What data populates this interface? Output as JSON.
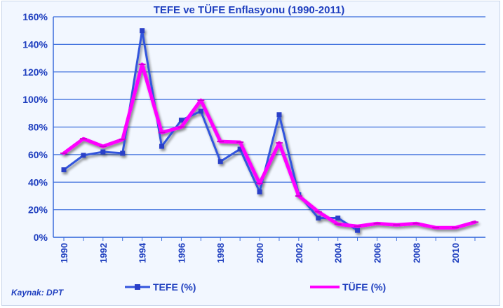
{
  "chart_data": {
    "type": "line",
    "title": "TEFE ve TÜFE Enflasyonu (1990-2011)",
    "source": "Kaynak: DPT",
    "ylim": [
      0,
      160
    ],
    "y_ticks": [
      0,
      20,
      40,
      60,
      80,
      100,
      120,
      140,
      160
    ],
    "y_tick_labels": [
      "0%",
      "20%",
      "40%",
      "60%",
      "80%",
      "100%",
      "120%",
      "140%",
      "160%"
    ],
    "x_tick_labels": [
      "1990",
      "1992",
      "1994",
      "1996",
      "1998",
      "2000",
      "2002",
      "2004",
      "2006",
      "2008",
      "2010"
    ],
    "x": [
      1990,
      1991,
      1992,
      1993,
      1994,
      1995,
      1996,
      1997,
      1998,
      1999,
      2000,
      2001,
      2002,
      2003,
      2004,
      2005,
      2006,
      2007,
      2008,
      2009,
      2010,
      2011
    ],
    "xlim": [
      1990,
      2011
    ],
    "grid": true,
    "legend_position": "bottom",
    "series": [
      {
        "name": "TEFE (%)",
        "color": "#3355dd",
        "marker": "square",
        "values": [
          49,
          59.5,
          62,
          61,
          150,
          66,
          85,
          91.5,
          55,
          64,
          33,
          89,
          31,
          14,
          14,
          5,
          null,
          null,
          null,
          null,
          null,
          null
        ]
      },
      {
        "name": "TÜFE (%)",
        "color": "#ff00ff",
        "marker": "dash",
        "values": [
          61,
          71.5,
          66,
          71,
          125.5,
          76,
          80,
          99.5,
          69.5,
          69,
          39,
          68.5,
          30,
          18.5,
          9.5,
          8,
          10,
          9,
          10,
          7,
          7,
          11
        ]
      }
    ]
  }
}
